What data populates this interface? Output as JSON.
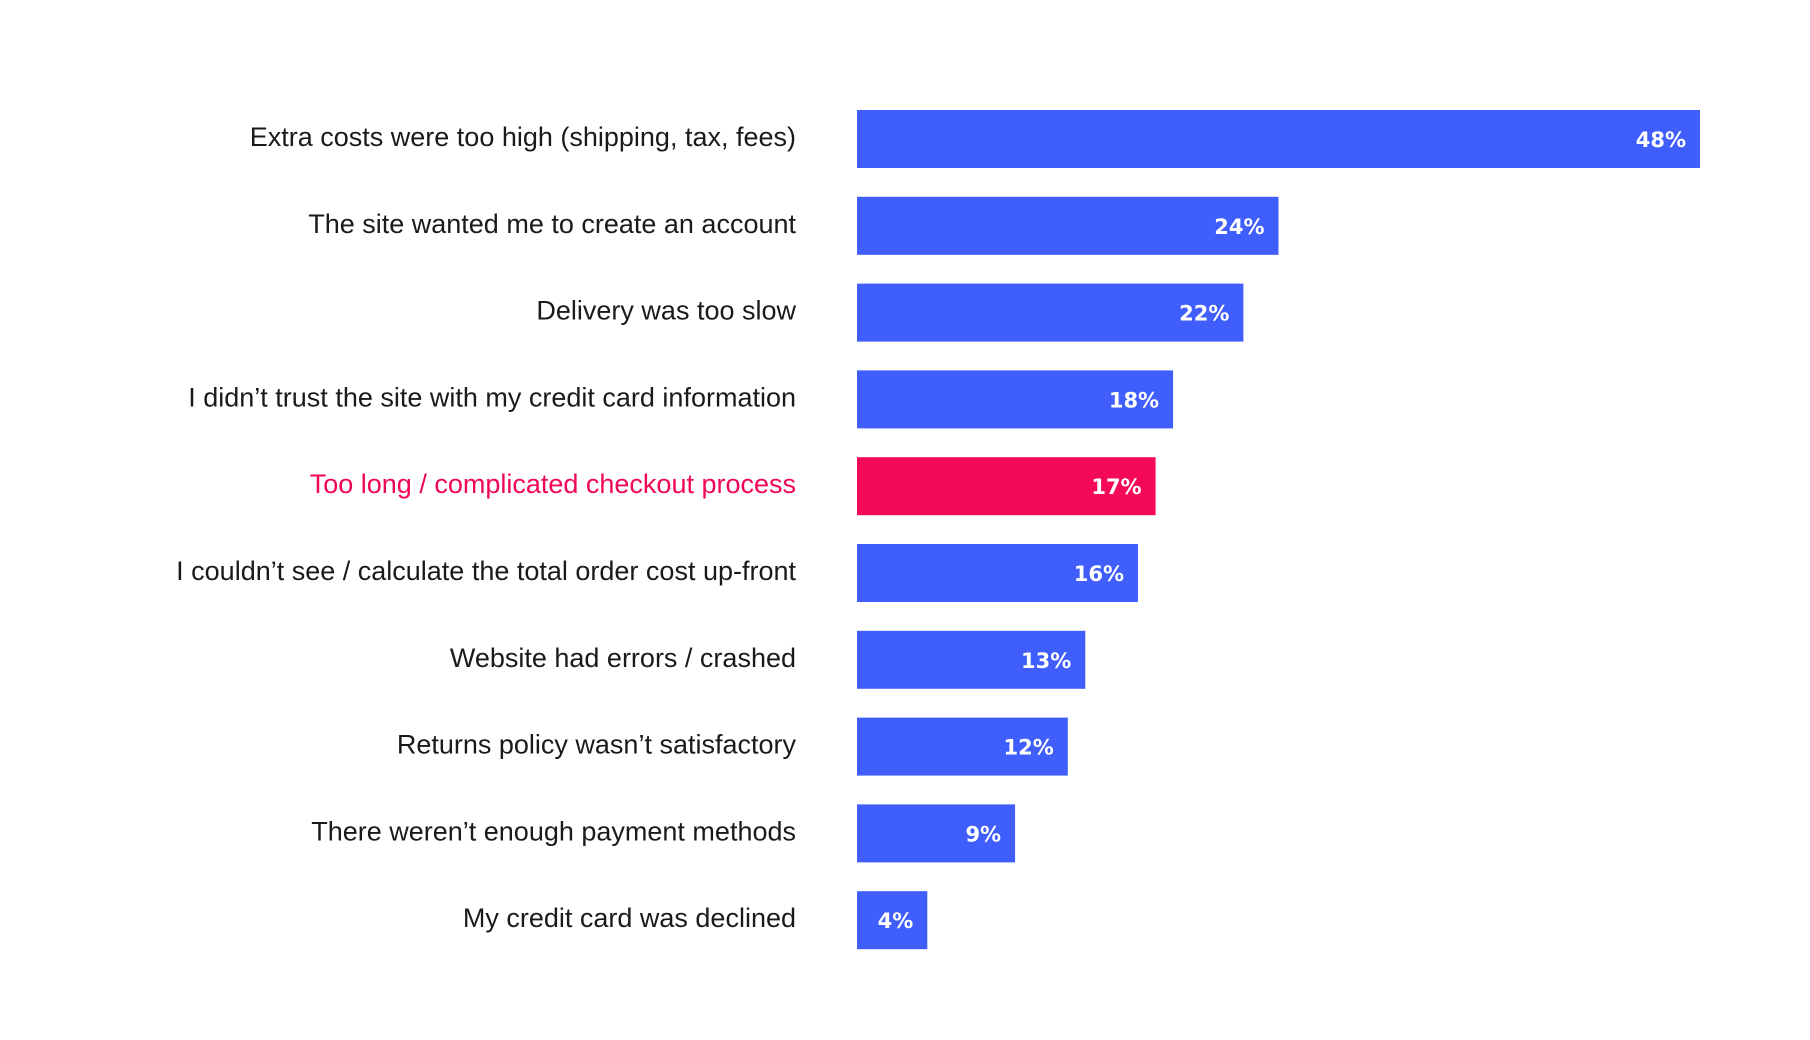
{
  "chart_data": {
    "type": "bar",
    "orientation": "horizontal",
    "categories": [
      "Extra costs were too high (shipping, tax, fees)",
      "The site wanted me to create an account",
      "Delivery was too slow",
      "I didn’t trust the site with my credit card information",
      "Too long / complicated checkout process",
      "I couldn’t see / calculate the total order cost up-front",
      "Website had errors / crashed",
      "Returns policy wasn’t satisfactory",
      "There weren’t enough payment methods",
      "My credit card was declined"
    ],
    "values": [
      48,
      24,
      22,
      18,
      17,
      16,
      13,
      12,
      9,
      4
    ],
    "value_labels": [
      "48%",
      "24%",
      "22%",
      "18%",
      "17%",
      "16%",
      "13%",
      "12%",
      "9%",
      "4%"
    ],
    "unit": "%",
    "highlight_index": 4,
    "colors": {
      "bar": "#3f5efb",
      "highlight": "#f40859",
      "highlight_text": "#f0065a",
      "label_text": "#1a1a1a",
      "value_text": "#ffffff"
    },
    "grid": false,
    "legend": "none",
    "xlim": [
      0,
      48
    ]
  }
}
